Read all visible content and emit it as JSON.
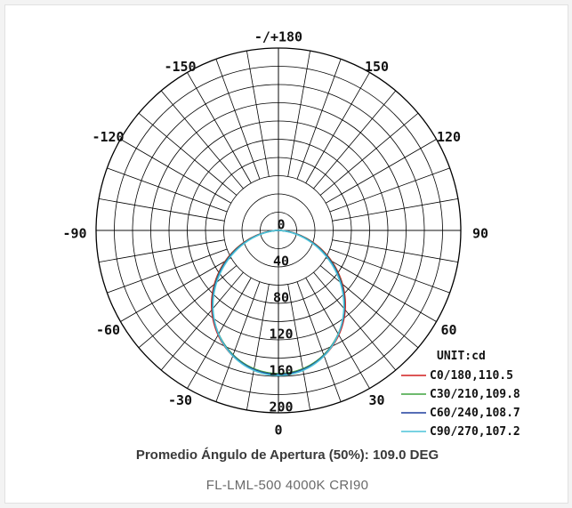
{
  "chart_data": {
    "type": "polar",
    "unit_label": "UNIT:cd",
    "angle_labels": [
      {
        "angle": 180,
        "text": "-/+180"
      },
      {
        "angle": -150,
        "text": "-150"
      },
      {
        "angle": 150,
        "text": "150"
      },
      {
        "angle": -120,
        "text": "-120"
      },
      {
        "angle": 120,
        "text": "120"
      },
      {
        "angle": -90,
        "text": "-90"
      },
      {
        "angle": 90,
        "text": "90"
      },
      {
        "angle": -60,
        "text": "-60"
      },
      {
        "angle": 60,
        "text": "60"
      },
      {
        "angle": -30,
        "text": "-30"
      },
      {
        "angle": 30,
        "text": "30"
      },
      {
        "angle": 0,
        "text": "0"
      }
    ],
    "radial_ticks": [
      {
        "value": 0,
        "text": "0"
      },
      {
        "value": 40,
        "text": "40"
      },
      {
        "value": 80,
        "text": "80"
      },
      {
        "value": 120,
        "text": "120"
      },
      {
        "value": 160,
        "text": "160"
      },
      {
        "value": 200,
        "text": "200"
      }
    ],
    "rlim": [
      0,
      200
    ],
    "grid": true,
    "legend_position": "bottom-right",
    "series": [
      {
        "name": "C0/180,110.5",
        "color": "#d11f1f",
        "beam_angle": 110.5,
        "peak": 158
      },
      {
        "name": "C30/210,109.8",
        "color": "#3fa33f",
        "beam_angle": 109.8,
        "peak": 157
      },
      {
        "name": "C60/240,108.7",
        "color": "#1f3f9e",
        "beam_angle": 108.7,
        "peak": 158
      },
      {
        "name": "C90/270,107.2",
        "color": "#4cc4d8",
        "beam_angle": 107.2,
        "peak": 159
      }
    ]
  },
  "caption": "Promedio Ángulo de Apertura (50%): 109.0 DEG",
  "model": "FL-LML-500  4000K  CRI90"
}
